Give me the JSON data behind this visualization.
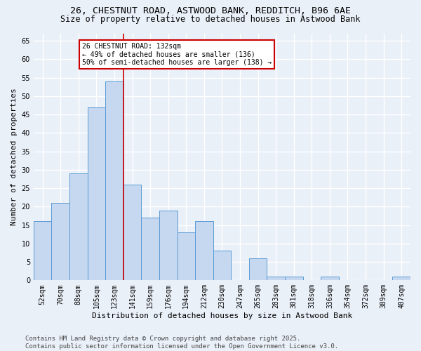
{
  "title1": "26, CHESTNUT ROAD, ASTWOOD BANK, REDDITCH, B96 6AE",
  "title2": "Size of property relative to detached houses in Astwood Bank",
  "xlabel": "Distribution of detached houses by size in Astwood Bank",
  "ylabel": "Number of detached properties",
  "categories": [
    "52sqm",
    "70sqm",
    "88sqm",
    "105sqm",
    "123sqm",
    "141sqm",
    "159sqm",
    "176sqm",
    "194sqm",
    "212sqm",
    "230sqm",
    "247sqm",
    "265sqm",
    "283sqm",
    "301sqm",
    "318sqm",
    "336sqm",
    "354sqm",
    "372sqm",
    "389sqm",
    "407sqm"
  ],
  "values": [
    16,
    21,
    29,
    47,
    54,
    26,
    17,
    19,
    13,
    16,
    8,
    0,
    6,
    1,
    1,
    0,
    1,
    0,
    0,
    0,
    1
  ],
  "bar_color": "#c5d8ef",
  "bar_edge_color": "#5b9bd5",
  "bg_color": "#eaf0f8",
  "grid_color": "#ffffff",
  "vline_x": 4.5,
  "vline_color": "#cc0000",
  "annotation_text": "26 CHESTNUT ROAD: 132sqm\n← 49% of detached houses are smaller (136)\n50% of semi-detached houses are larger (138) →",
  "annotation_box_color": "#cc0000",
  "ylim": [
    0,
    67
  ],
  "yticks": [
    0,
    5,
    10,
    15,
    20,
    25,
    30,
    35,
    40,
    45,
    50,
    55,
    60,
    65
  ],
  "footer": "Contains HM Land Registry data © Crown copyright and database right 2025.\nContains public sector information licensed under the Open Government Licence v3.0.",
  "title_fontsize": 9.5,
  "subtitle_fontsize": 8.5,
  "axis_fontsize": 8,
  "tick_fontsize": 7,
  "annotation_fontsize": 7,
  "footer_fontsize": 6.5
}
